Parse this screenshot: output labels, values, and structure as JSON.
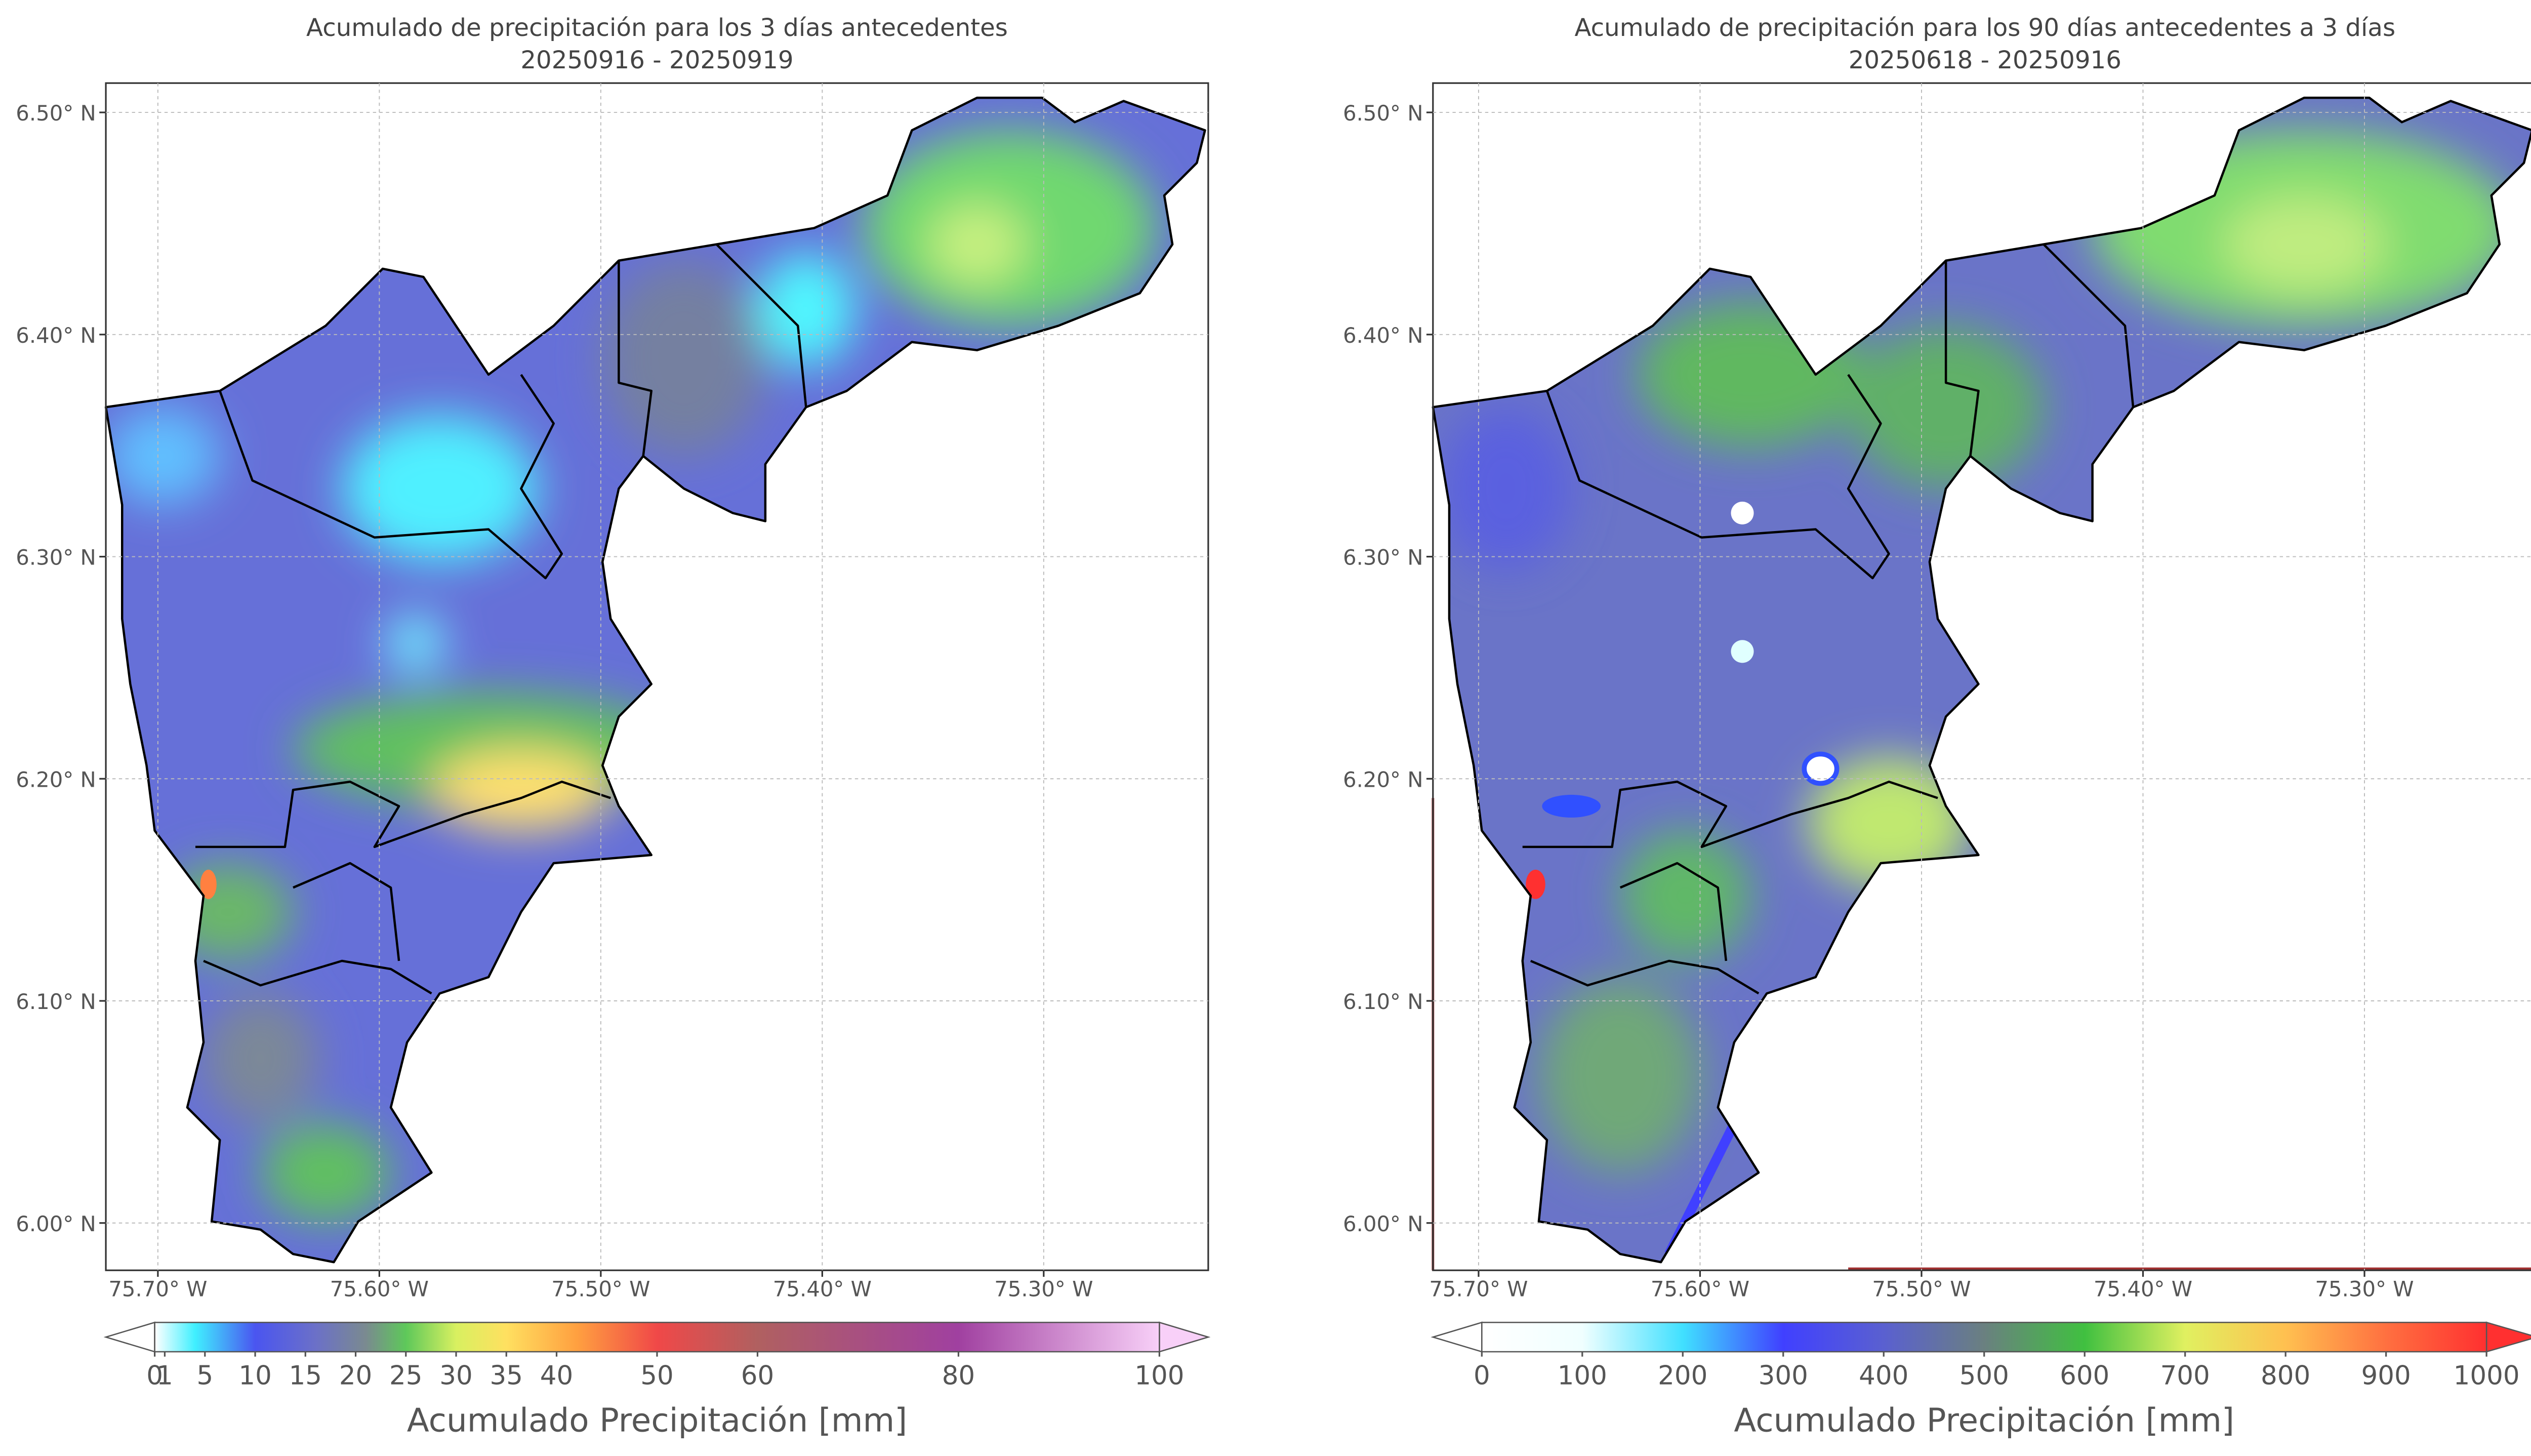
{
  "maps": [
    {
      "title": "Acumulado de precipitación para los 3 días antecedentes",
      "subtitle": "20250916 - 20250919",
      "xlim": [
        -75.7235,
        -75.2257
      ],
      "ylim": [
        5.9787,
        6.5132
      ],
      "xticks": [
        {
          "value": -75.7,
          "label": "75.70° W"
        },
        {
          "value": -75.6,
          "label": "75.60° W"
        },
        {
          "value": -75.5,
          "label": "75.50° W"
        },
        {
          "value": -75.4,
          "label": "75.40° W"
        },
        {
          "value": -75.3,
          "label": "75.30° W"
        }
      ],
      "yticks": [
        {
          "value": 6.0,
          "label": "6.00° N"
        },
        {
          "value": 6.1,
          "label": "6.10° N"
        },
        {
          "value": 6.2,
          "label": "6.20° N"
        },
        {
          "value": 6.3,
          "label": "6.30° N"
        },
        {
          "value": 6.4,
          "label": "6.40° N"
        },
        {
          "value": 6.5,
          "label": "6.50° N"
        }
      ],
      "grid": true,
      "colorbar": {
        "label": "Acumulado Precipitación [mm]",
        "clim": [
          0,
          100
        ],
        "ticks": [
          0,
          1,
          5,
          10,
          15,
          20,
          25,
          30,
          35,
          40,
          50,
          60,
          80,
          100
        ]
      }
    },
    {
      "title": "Acumulado de precipitación para los 90 días antecedentes a 3 días",
      "subtitle": "20250618 - 20250916",
      "xlim": [
        -75.7206,
        -75.2221
      ],
      "ylim": [
        5.9787,
        6.5132
      ],
      "xticks": [
        {
          "value": -75.7,
          "label": "75.70° W"
        },
        {
          "value": -75.6,
          "label": "75.60° W"
        },
        {
          "value": -75.5,
          "label": "75.50° W"
        },
        {
          "value": -75.4,
          "label": "75.40° W"
        },
        {
          "value": -75.3,
          "label": "75.30° W"
        }
      ],
      "yticks": [
        {
          "value": 6.0,
          "label": "6.00° N"
        },
        {
          "value": 6.1,
          "label": "6.10° N"
        },
        {
          "value": 6.2,
          "label": "6.20° N"
        },
        {
          "value": 6.3,
          "label": "6.30° N"
        },
        {
          "value": 6.4,
          "label": "6.40° N"
        },
        {
          "value": 6.5,
          "label": "6.50° N"
        }
      ],
      "grid": true,
      "colorbar": {
        "label": "Acumulado Precipitación [mm]",
        "clim": [
          0,
          1000
        ],
        "ticks": [
          0,
          100,
          200,
          300,
          400,
          500,
          600,
          700,
          800,
          900,
          1000
        ]
      }
    }
  ]
}
